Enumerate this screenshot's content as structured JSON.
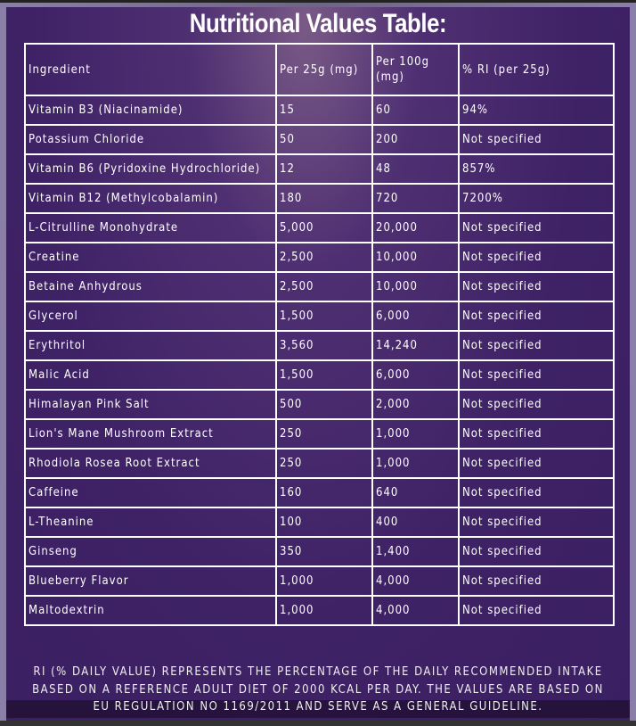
{
  "title": "Nutritional Values Table:",
  "headers": [
    "Ingredient",
    "Per 25g (mg)",
    "Per 100g (mg)",
    "% RI (per 25g)"
  ],
  "rows": [
    [
      "Vitamin B3 (Niacinamide)",
      "15",
      "60",
      "94%"
    ],
    [
      "Potassium Chloride",
      "50",
      "200",
      "Not specified"
    ],
    [
      "Vitamin B6 (Pyridoxine Hydrochloride)",
      "12",
      "48",
      "857%"
    ],
    [
      "Vitamin B12 (Methylcobalamin)",
      "180",
      "720",
      "7200%"
    ],
    [
      "L-Citrulline Monohydrate",
      "5,000",
      "20,000",
      "Not specified"
    ],
    [
      "Creatine",
      "2,500",
      "10,000",
      "Not specified"
    ],
    [
      "Betaine Anhydrous",
      "2,500",
      "10,000",
      "Not specified"
    ],
    [
      "Glycerol",
      "1,500",
      "6,000",
      "Not specified"
    ],
    [
      "Erythritol",
      "3,560",
      "14,240",
      "Not specified"
    ],
    [
      "Malic Acid",
      "1,500",
      "6,000",
      "Not specified"
    ],
    [
      "Himalayan Pink Salt",
      "500",
      "2,000",
      "Not specified"
    ],
    [
      "Lion's Mane Mushroom Extract",
      "250",
      "1,000",
      "Not specified"
    ],
    [
      "Rhodiola Rosea Root Extract",
      "250",
      "1,000",
      "Not specified"
    ],
    [
      "Caffeine",
      "160",
      "640",
      "Not specified"
    ],
    [
      "L-Theanine",
      "100",
      "400",
      "Not specified"
    ],
    [
      "Ginseng",
      "350",
      "1,400",
      "Not specified"
    ],
    [
      "Blueberry Flavor",
      "1,000",
      "4,000",
      "Not specified"
    ],
    [
      "Maltodextrin",
      "1,000",
      "4,000",
      "Not specified"
    ]
  ],
  "footnote": [
    "RI (% DAILY VALUE) REPRESENTS THE PERCENTAGE OF THE DAILY RECOMMENDED INTAKE",
    "BASED ON A REFERENCE ADULT DIET OF 2000 KCAL PER DAY. THE VALUES ARE BASED ON",
    "EU REGULATION NO 1169/2011 AND SERVE AS A GENERAL GUIDELINE."
  ],
  "colors": {
    "background": "#3f2266",
    "text": "#ffffff"
  }
}
